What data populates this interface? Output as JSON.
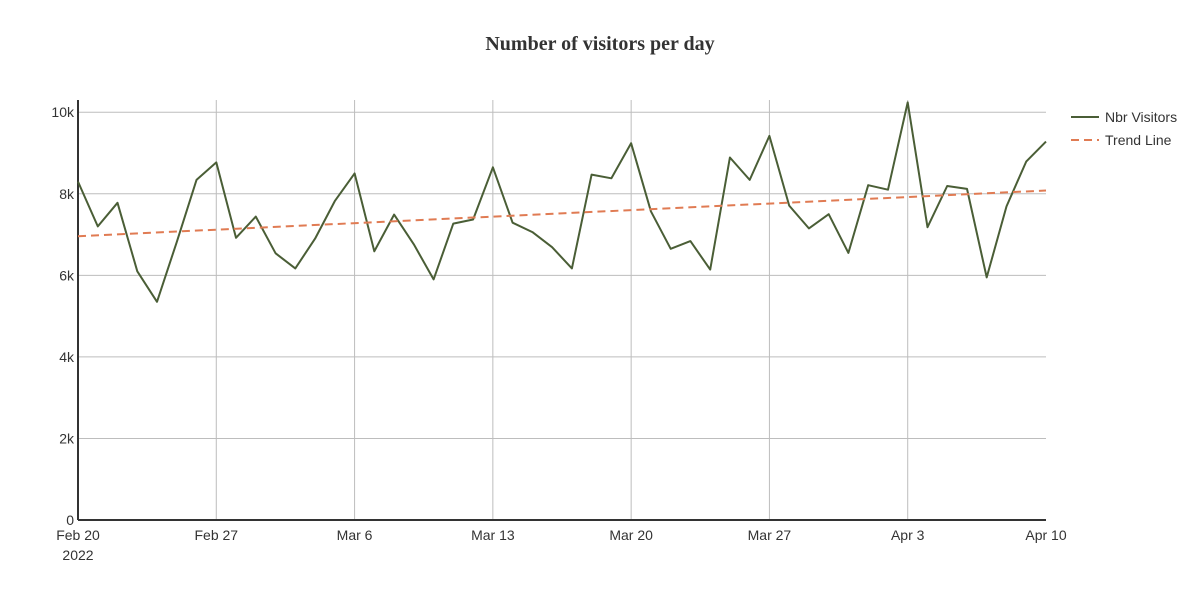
{
  "chart_data": {
    "type": "line",
    "title": "Number of visitors per day",
    "xlabel": "",
    "ylabel": "",
    "x_start": "2022-02-20",
    "x_end": "2022-04-10",
    "x_ticks": [
      {
        "date": "2022-02-20",
        "label": "Feb 20",
        "sublabel": "2022"
      },
      {
        "date": "2022-02-27",
        "label": "Feb 27"
      },
      {
        "date": "2022-03-06",
        "label": "Mar 6"
      },
      {
        "date": "2022-03-13",
        "label": "Mar 13"
      },
      {
        "date": "2022-03-20",
        "label": "Mar 20"
      },
      {
        "date": "2022-03-27",
        "label": "Mar 27"
      },
      {
        "date": "2022-04-03",
        "label": "Apr 3"
      },
      {
        "date": "2022-04-10",
        "label": "Apr 10"
      }
    ],
    "ylim": [
      0,
      10300
    ],
    "y_ticks": [
      {
        "value": 0,
        "label": "0"
      },
      {
        "value": 2000,
        "label": "2k"
      },
      {
        "value": 4000,
        "label": "4k"
      },
      {
        "value": 6000,
        "label": "6k"
      },
      {
        "value": 8000,
        "label": "8k"
      },
      {
        "value": 10000,
        "label": "10k"
      }
    ],
    "grid": true,
    "legend_position": "top-right",
    "series": [
      {
        "name": "Nbr Visitors",
        "style": "solid",
        "color": "#4a5e36",
        "x": [
          "2022-02-20",
          "2022-02-21",
          "2022-02-22",
          "2022-02-23",
          "2022-02-24",
          "2022-02-25",
          "2022-02-26",
          "2022-02-27",
          "2022-02-28",
          "2022-03-01",
          "2022-03-02",
          "2022-03-03",
          "2022-03-04",
          "2022-03-05",
          "2022-03-06",
          "2022-03-07",
          "2022-03-08",
          "2022-03-09",
          "2022-03-10",
          "2022-03-11",
          "2022-03-12",
          "2022-03-13",
          "2022-03-14",
          "2022-03-15",
          "2022-03-16",
          "2022-03-17",
          "2022-03-18",
          "2022-03-19",
          "2022-03-20",
          "2022-03-21",
          "2022-03-22",
          "2022-03-23",
          "2022-03-24",
          "2022-03-25",
          "2022-03-26",
          "2022-03-27",
          "2022-03-28",
          "2022-03-29",
          "2022-03-30",
          "2022-03-31",
          "2022-04-01",
          "2022-04-02",
          "2022-04-03",
          "2022-04-04",
          "2022-04-05",
          "2022-04-06",
          "2022-04-07",
          "2022-04-08",
          "2022-04-09",
          "2022-04-10"
        ],
        "values": [
          8300,
          7200,
          7780,
          6100,
          5350,
          6820,
          8340,
          8770,
          6920,
          7440,
          6540,
          6170,
          6900,
          7820,
          8500,
          6590,
          7490,
          6760,
          5900,
          7270,
          7370,
          8650,
          7290,
          7060,
          6690,
          6170,
          8470,
          8380,
          9240,
          7570,
          6650,
          6840,
          6140,
          8890,
          8340,
          9420,
          7710,
          7150,
          7500,
          6550,
          8210,
          8100,
          10240,
          7180,
          8190,
          8120,
          5950,
          7690,
          8790,
          9280
        ]
      },
      {
        "name": "Trend Line",
        "style": "dashed",
        "color": "#e07b53",
        "x": [
          "2022-02-20",
          "2022-04-10"
        ],
        "values": [
          6960,
          8080
        ]
      }
    ]
  }
}
